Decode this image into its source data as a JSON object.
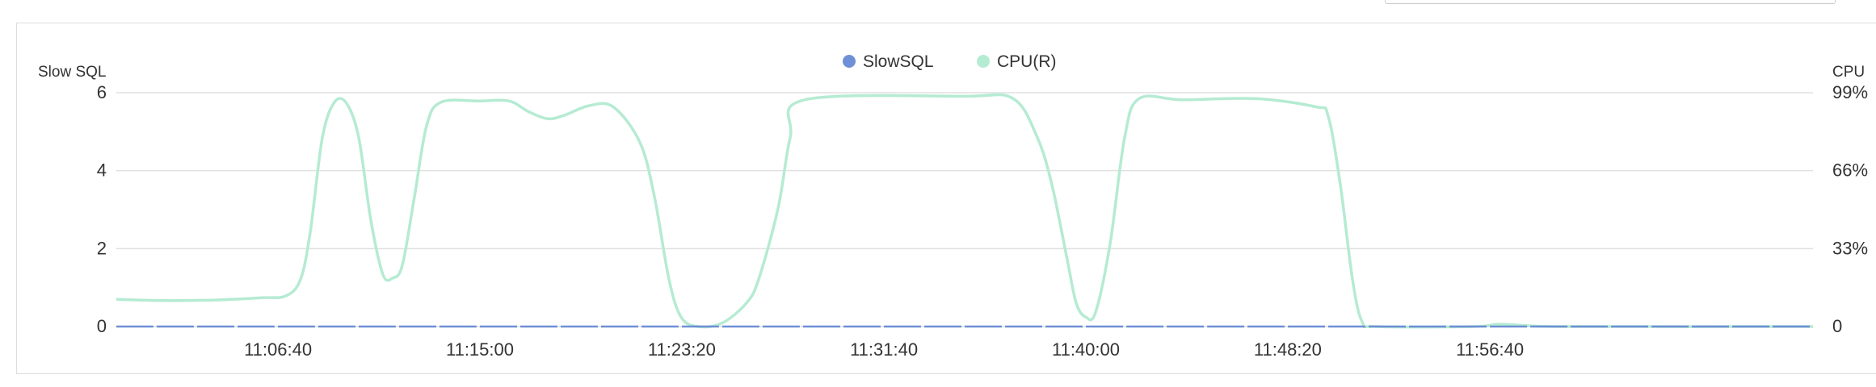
{
  "chart_data": {
    "type": "line",
    "legend": {
      "position": "top-center",
      "items": [
        {
          "name": "SlowSQL",
          "color": "#6f8fd6"
        },
        {
          "name": "CPU(R)",
          "color": "#b5ebd2"
        }
      ]
    },
    "y_left": {
      "label": "Slow SQL",
      "range": [
        0,
        6
      ],
      "ticks": [
        "0",
        "2",
        "4",
        "6"
      ]
    },
    "y_right": {
      "label": "CPU",
      "range": [
        0,
        99
      ],
      "ticks": [
        "0",
        "33%",
        "66%",
        "99%"
      ]
    },
    "x": {
      "range_minutes": [
        0,
        70
      ],
      "tick_minutes": [
        6.67,
        15,
        23.33,
        31.67,
        40,
        48.33,
        56.67
      ],
      "tick_labels": [
        "11:06:40",
        "11:15:00",
        "11:23:20",
        "11:31:40",
        "11:40:00",
        "11:48:20",
        "11:56:40"
      ]
    },
    "series": [
      {
        "name": "SlowSQL",
        "color": "#6f8fd6",
        "axis": "left",
        "points": [
          [
            0,
            0
          ],
          [
            70,
            0
          ]
        ]
      },
      {
        "name": "CPU(R)",
        "color": "#b5ebd2",
        "axis": "right",
        "points": [
          [
            0,
            11.5
          ],
          [
            2,
            11
          ],
          [
            4,
            11.2
          ],
          [
            6,
            12.2
          ],
          [
            7,
            13
          ],
          [
            7.6,
            20
          ],
          [
            8,
            40
          ],
          [
            8.5,
            80
          ],
          [
            9,
            95
          ],
          [
            9.5,
            94.5
          ],
          [
            10,
            80
          ],
          [
            10.5,
            45
          ],
          [
            11,
            22
          ],
          [
            11.4,
            20.5
          ],
          [
            11.8,
            26
          ],
          [
            12.3,
            55
          ],
          [
            12.8,
            85
          ],
          [
            13.4,
            95
          ],
          [
            15,
            95.5
          ],
          [
            16.2,
            95.5
          ],
          [
            17,
            91
          ],
          [
            17.8,
            88
          ],
          [
            18.5,
            89.5
          ],
          [
            19.5,
            93.5
          ],
          [
            20.5,
            93
          ],
          [
            21.6,
            78
          ],
          [
            22.2,
            55
          ],
          [
            22.8,
            20
          ],
          [
            23.3,
            4
          ],
          [
            24,
            0
          ],
          [
            25,
            1.5
          ],
          [
            26,
            10
          ],
          [
            26.5,
            20
          ],
          [
            27.3,
            50
          ],
          [
            27.8,
            80
          ],
          [
            28.4,
            96
          ],
          [
            35,
            97.5
          ],
          [
            37,
            96.5
          ],
          [
            38,
            80
          ],
          [
            38.6,
            60
          ],
          [
            39.2,
            30
          ],
          [
            39.6,
            10
          ],
          [
            40,
            4
          ],
          [
            40.4,
            6
          ],
          [
            41,
            35
          ],
          [
            41.6,
            80
          ],
          [
            42.2,
            96.5
          ],
          [
            44,
            96
          ],
          [
            47,
            96.5
          ],
          [
            49.5,
            93
          ],
          [
            50,
            89
          ],
          [
            50.5,
            60
          ],
          [
            51,
            20
          ],
          [
            51.4,
            2
          ],
          [
            52,
            0
          ],
          [
            56,
            0
          ],
          [
            57,
            1
          ],
          [
            58,
            0.5
          ],
          [
            60,
            0
          ],
          [
            70,
            0
          ]
        ]
      }
    ]
  }
}
